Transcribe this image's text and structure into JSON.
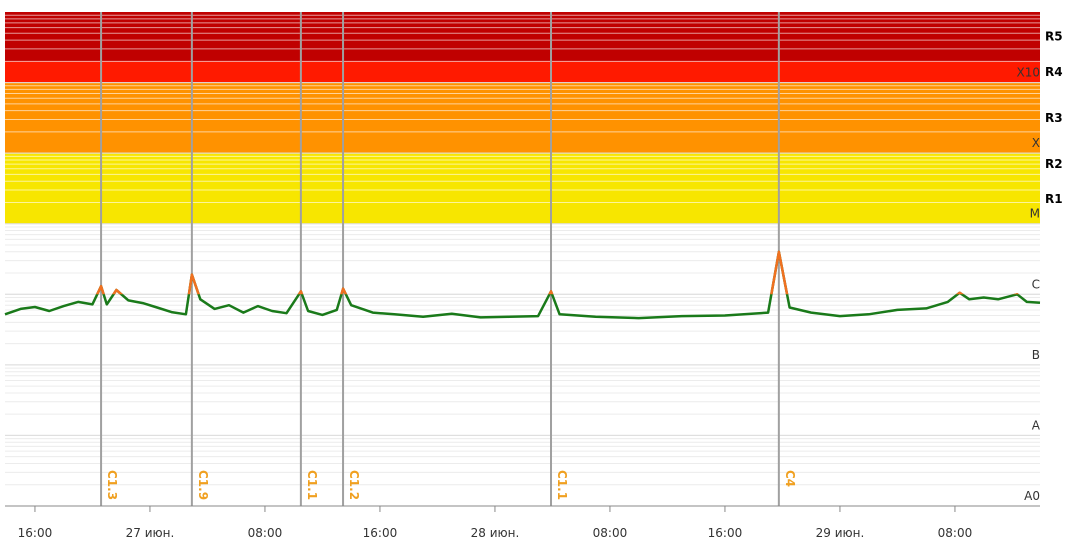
{
  "chart_data": {
    "type": "line",
    "log_y": true,
    "ylim": [
      1e-09,
      0.01
    ],
    "yticks": [
      {
        "value": 1e-09,
        "label": "A0"
      },
      {
        "value": 1e-08,
        "label": "A"
      },
      {
        "value": 1e-07,
        "label": "B"
      },
      {
        "value": 1e-06,
        "label": "C"
      },
      {
        "value": 1e-05,
        "label": "M"
      },
      {
        "value": 0.0001,
        "label": "X"
      },
      {
        "value": 0.001,
        "label": "X10"
      }
    ],
    "xlim": [
      "06-26 13:55",
      "06-29 13:55"
    ],
    "xticks": [
      {
        "value": "06-26 16:00",
        "label": "16:00"
      },
      {
        "value": "06-27 00:00",
        "label": "27 июн."
      },
      {
        "value": "06-27 08:00",
        "label": "08:00"
      },
      {
        "value": "06-27 16:00",
        "label": "16:00"
      },
      {
        "value": "06-28 00:00",
        "label": "28 июн."
      },
      {
        "value": "06-28 08:00",
        "label": "08:00"
      },
      {
        "value": "06-28 16:00",
        "label": "16:00"
      },
      {
        "value": "06-29 00:00",
        "label": "29 июн."
      },
      {
        "value": "06-29 08:00",
        "label": "08:00"
      }
    ],
    "bands": [
      {
        "from": 1e-05,
        "to": 0.0001,
        "color": "#f7e600"
      },
      {
        "from": 0.0001,
        "to": 0.001,
        "color": "#ff9200"
      },
      {
        "from": 0.001,
        "to": 0.002,
        "color": "#ff1a00"
      },
      {
        "from": 0.002,
        "to": 0.01,
        "color": "#c00000"
      }
    ],
    "r_scale": [
      {
        "label": "R1",
        "from": 1e-05,
        "to": 5e-05
      },
      {
        "label": "R2",
        "from": 5e-05,
        "to": 0.0001
      },
      {
        "label": "R3",
        "from": 0.0001,
        "to": 0.001
      },
      {
        "label": "R4",
        "from": 0.001,
        "to": 0.002
      },
      {
        "label": "R5",
        "from": 0.002,
        "to": 0.01
      }
    ],
    "highlight_above": 1e-06,
    "highlight_color": "#f07020",
    "series": [
      {
        "color": "#1a7a1a",
        "x": [
          "06-26 13:55",
          "06-26 15:00",
          "06-26 16:00",
          "06-26 17:00",
          "06-26 18:00",
          "06-26 19:00",
          "06-26 20:00",
          "06-26 20:36",
          "06-26 21:00",
          "06-26 21:40",
          "06-26 22:30",
          "06-26 23:30",
          "06-27 00:30",
          "06-27 01:30",
          "06-27 02:30",
          "06-27 02:55",
          "06-27 03:30",
          "06-27 04:30",
          "06-27 05:30",
          "06-27 06:30",
          "06-27 07:30",
          "06-27 08:30",
          "06-27 09:30",
          "06-27 10:30",
          "06-27 11:00",
          "06-27 12:00",
          "06-27 13:00",
          "06-27 13:26",
          "06-27 14:00",
          "06-27 15:30",
          "06-27 17:00",
          "06-27 19:00",
          "06-27 21:00",
          "06-27 23:00",
          "06-28 01:00",
          "06-28 03:00",
          "06-28 03:54",
          "06-28 04:30",
          "06-28 07:00",
          "06-28 10:00",
          "06-28 13:00",
          "06-28 16:00",
          "06-28 19:00",
          "06-28 19:45",
          "06-28 20:30",
          "06-28 22:00",
          "06-29 00:00",
          "06-29 02:00",
          "06-29 04:00",
          "06-29 06:00",
          "06-29 07:30",
          "06-29 08:20",
          "06-29 09:00",
          "06-29 10:00",
          "06-29 11:00",
          "06-29 12:20",
          "06-29 13:00",
          "06-29 13:55"
        ],
        "values": [
          5.2e-07,
          6.2e-07,
          6.6e-07,
          5.8e-07,
          6.8e-07,
          7.8e-07,
          7.2e-07,
          1.3e-06,
          7.2e-07,
          1.15e-06,
          8.2e-07,
          7.5e-07,
          6.5e-07,
          5.6e-07,
          5.2e-07,
          1.9e-06,
          8.5e-07,
          6.2e-07,
          7e-07,
          5.5e-07,
          6.8e-07,
          5.8e-07,
          5.4e-07,
          1.1e-06,
          5.8e-07,
          5.1e-07,
          6e-07,
          1.2e-06,
          7e-07,
          5.5e-07,
          5.2e-07,
          4.8e-07,
          5.3e-07,
          4.7e-07,
          4.8e-07,
          4.9e-07,
          1.1e-06,
          5.2e-07,
          4.8e-07,
          4.6e-07,
          4.9e-07,
          5e-07,
          5.5e-07,
          4e-06,
          6.5e-07,
          5.5e-07,
          4.9e-07,
          5.2e-07,
          6e-07,
          6.3e-07,
          7.8e-07,
          1.05e-06,
          8.5e-07,
          9e-07,
          8.5e-07,
          1e-06,
          7.8e-07,
          7.6e-07
        ]
      }
    ],
    "flares": [
      {
        "time": "06-26 20:36",
        "label": "C1.3"
      },
      {
        "time": "06-27 02:55",
        "label": "C1.9"
      },
      {
        "time": "06-27 10:30",
        "label": "C1.1"
      },
      {
        "time": "06-27 13:26",
        "label": "C1.2"
      },
      {
        "time": "06-28 03:54",
        "label": "C1.1"
      },
      {
        "time": "06-28 19:45",
        "label": "C4"
      }
    ]
  }
}
